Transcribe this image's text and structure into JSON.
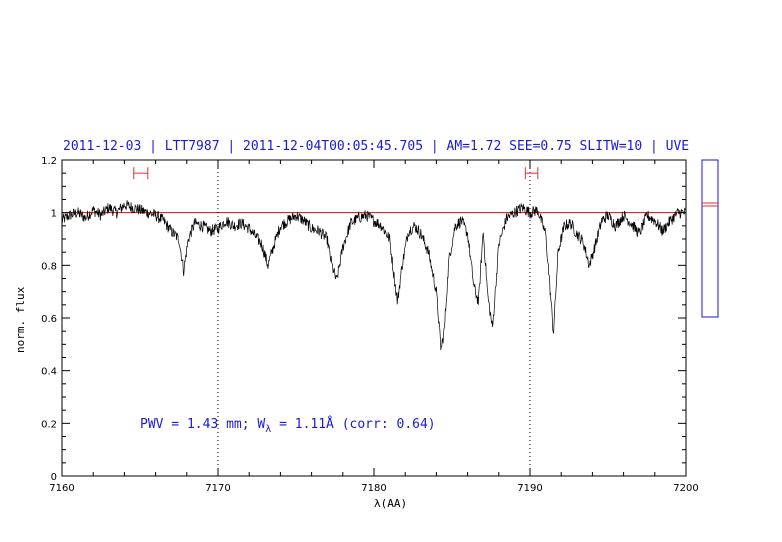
{
  "title": "2011-12-03 | LTT7987 | 2011-12-04T00:05:45.705 | AM=1.72  SEE=0.75  SLITW=10 | UVE",
  "annotation": {
    "pwv": "PWV = 1.43 mm; W",
    "sub": "λ",
    "rest": " = 1.11Å (corr: 0.64)"
  },
  "colors": {
    "title": "#1a1ad6",
    "fit_line": "#d01010",
    "spectrum": "#000000",
    "side_panel": "#1a1ad6",
    "range_marker": "#e03030"
  },
  "chart_data": {
    "type": "line",
    "xlabel": "λ(AA)",
    "ylabel": "norm. flux",
    "xlim": [
      7160,
      7200
    ],
    "ylim": [
      0,
      1.2
    ],
    "xticks": [
      7160,
      7170,
      7180,
      7190,
      7200
    ],
    "xtick_labels": [
      "7160",
      "7170",
      "7180",
      "7190",
      "7200"
    ],
    "yticks": [
      0,
      0.2,
      0.4,
      0.6,
      0.8,
      1,
      1.2
    ],
    "ytick_labels": [
      "0",
      "0.2",
      "0.4",
      "0.6",
      "0.8",
      "1",
      "1.2"
    ],
    "reference_line": 1.0,
    "vertical_dotted_lines": [
      7170,
      7190
    ],
    "continuum_ranges": [
      [
        7164.6,
        7165.5
      ],
      [
        7189.7,
        7190.5
      ]
    ],
    "continuum_marker_level": 1.15,
    "series": [
      {
        "x": [
          7160.0,
          7160.5,
          7161.0,
          7161.5,
          7162.0,
          7162.5,
          7163.0,
          7163.5,
          7164.0,
          7164.5,
          7165.0,
          7165.5,
          7166.0,
          7166.5,
          7167.0,
          7167.5,
          7167.8,
          7168.1,
          7168.5,
          7169.0,
          7169.5,
          7170.0,
          7170.5,
          7171.0,
          7171.5,
          7172.0,
          7172.4,
          7172.8,
          7173.2,
          7173.6,
          7174.0,
          7174.5,
          7175.0,
          7175.5,
          7176.0,
          7176.5,
          7177.0,
          7177.3,
          7177.6,
          7178.0,
          7178.5,
          7179.0,
          7179.5,
          7180.0,
          7180.5,
          7181.0,
          7181.3,
          7181.5,
          7181.8,
          7182.2,
          7182.6,
          7183.0,
          7183.5,
          7184.0,
          7184.3,
          7184.5,
          7184.8,
          7185.2,
          7185.6,
          7186.0,
          7186.4,
          7186.7,
          7187.0,
          7187.3,
          7187.6,
          7188.0,
          7188.5,
          7189.0,
          7189.5,
          7190.0,
          7190.5,
          7191.0,
          7191.3,
          7191.5,
          7191.8,
          7192.2,
          7192.6,
          7193.0,
          7193.4,
          7193.8,
          7194.2,
          7194.6,
          7195.0,
          7195.5,
          7196.0,
          7196.5,
          7197.0,
          7197.5,
          7198.0,
          7198.5,
          7199.0,
          7199.5,
          7200.0
        ],
        "y": [
          0.97,
          0.99,
          1.0,
          0.98,
          1.01,
          0.99,
          1.02,
          1.0,
          1.03,
          1.02,
          1.01,
          1.0,
          0.99,
          0.97,
          0.93,
          0.9,
          0.78,
          0.9,
          0.96,
          0.95,
          0.93,
          0.94,
          0.97,
          0.95,
          0.96,
          0.94,
          0.91,
          0.88,
          0.8,
          0.88,
          0.95,
          0.97,
          0.99,
          0.97,
          0.94,
          0.93,
          0.9,
          0.8,
          0.74,
          0.87,
          0.96,
          0.98,
          0.99,
          0.97,
          0.95,
          0.9,
          0.75,
          0.66,
          0.8,
          0.93,
          0.95,
          0.92,
          0.85,
          0.7,
          0.48,
          0.55,
          0.82,
          0.95,
          0.97,
          0.92,
          0.72,
          0.66,
          0.93,
          0.68,
          0.56,
          0.88,
          0.98,
          1.0,
          1.02,
          1.0,
          1.01,
          0.92,
          0.7,
          0.54,
          0.85,
          0.95,
          0.96,
          0.92,
          0.89,
          0.8,
          0.88,
          0.97,
          0.99,
          0.95,
          0.99,
          0.96,
          0.92,
          0.99,
          0.97,
          0.93,
          0.97,
          1.0,
          1.0
        ]
      }
    ]
  }
}
